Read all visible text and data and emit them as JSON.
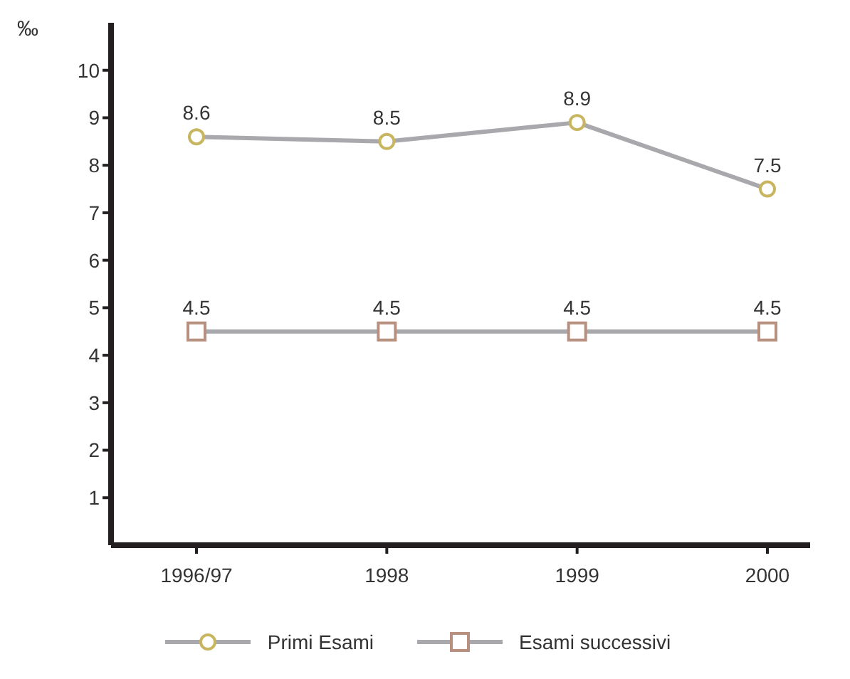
{
  "chart_data": {
    "type": "line",
    "ylabel": "‰",
    "categories": [
      "1996/97",
      "1998",
      "1999",
      "2000"
    ],
    "series": [
      {
        "name": "Primi Esami",
        "color": "#c8b560",
        "marker": "circle",
        "values": [
          8.6,
          8.5,
          8.9,
          7.5
        ]
      },
      {
        "name": "Esami successivi",
        "color": "#b89080",
        "marker": "square",
        "values": [
          4.5,
          4.5,
          4.5,
          4.5
        ]
      }
    ],
    "ylim": [
      0,
      11
    ],
    "yticks": [
      1,
      2,
      3,
      4,
      5,
      6,
      7,
      8,
      9,
      10
    ],
    "grid": false,
    "legend": "bottom",
    "data_labels": true
  }
}
